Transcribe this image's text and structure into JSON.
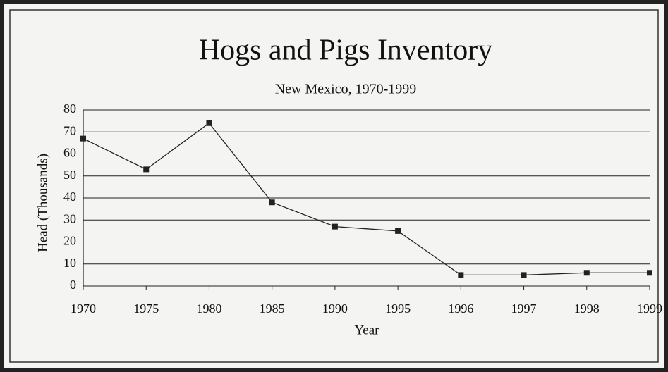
{
  "chart_data": {
    "type": "line",
    "title": "Hogs and Pigs Inventory",
    "subtitle": "New Mexico, 1970-1999",
    "x_label": "Year",
    "y_label": "Head (Thousands)",
    "categories": [
      "1970",
      "1975",
      "1980",
      "1985",
      "1990",
      "1995",
      "1996",
      "1997",
      "1998",
      "1999"
    ],
    "values": [
      67,
      53,
      74,
      38,
      27,
      25,
      5,
      5,
      6,
      6
    ],
    "color": "#222222",
    "ylim": [
      0,
      80
    ],
    "yticks": [
      0,
      10,
      20,
      30,
      40,
      50,
      60,
      70,
      80
    ],
    "grid": true
  }
}
